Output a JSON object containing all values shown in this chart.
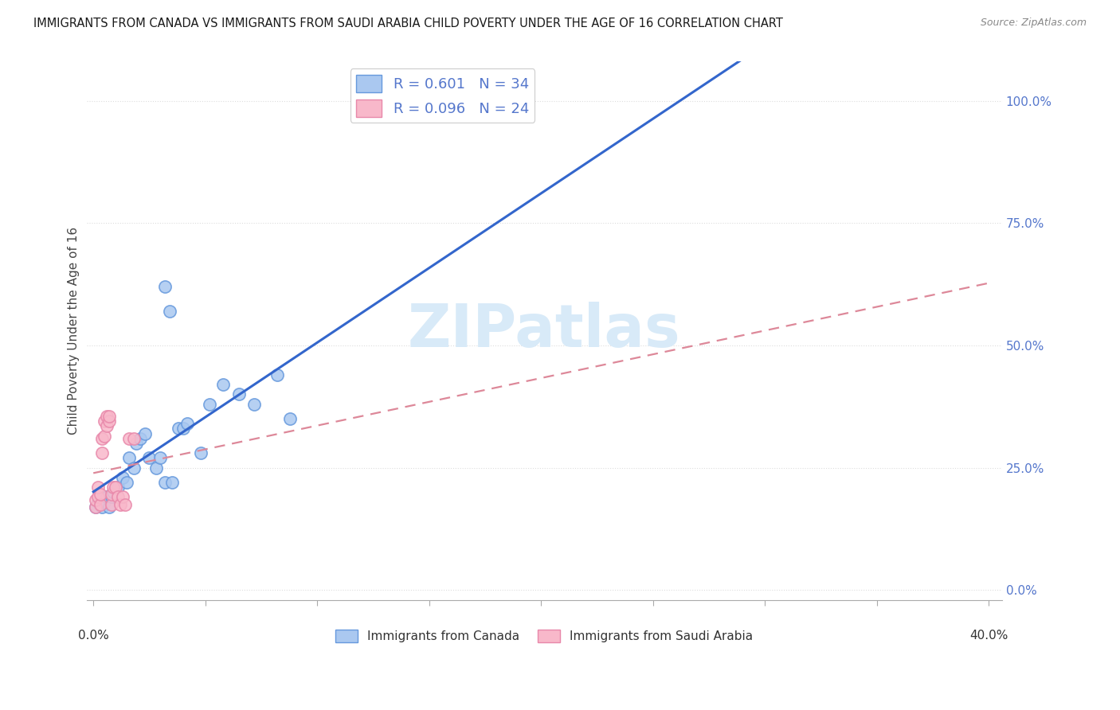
{
  "title": "IMMIGRANTS FROM CANADA VS IMMIGRANTS FROM SAUDI ARABIA CHILD POVERTY UNDER THE AGE OF 16 CORRELATION CHART",
  "source": "Source: ZipAtlas.com",
  "ylabel": "Child Poverty Under the Age of 16",
  "canada_color": "#aac8f0",
  "canada_edge_color": "#6699dd",
  "saudi_color": "#f8b8ca",
  "saudi_edge_color": "#e888aa",
  "trendline_canada_color": "#3366cc",
  "trendline_saudi_color": "#dd8899",
  "background_color": "#ffffff",
  "grid_color": "#dddddd",
  "watermark": "ZIPatlas",
  "watermark_color": "#d8eaf8",
  "right_tick_color": "#5577cc",
  "legend1_label": "R = 0.601   N = 34",
  "legend2_label": "R = 0.096   N = 24",
  "legend_bottom1": "Immigrants from Canada",
  "legend_bottom2": "Immigrants from Saudi Arabia",
  "canada_x": [
    0.001,
    0.002,
    0.003,
    0.004,
    0.005,
    0.006,
    0.007,
    0.008,
    0.009,
    0.011,
    0.013,
    0.015,
    0.016,
    0.018,
    0.019,
    0.021,
    0.023,
    0.025,
    0.028,
    0.03,
    0.032,
    0.035,
    0.038,
    0.04,
    0.042,
    0.048,
    0.052,
    0.058,
    0.065,
    0.072,
    0.082,
    0.088,
    0.032,
    0.034
  ],
  "canada_y": [
    0.17,
    0.18,
    0.19,
    0.17,
    0.18,
    0.19,
    0.17,
    0.19,
    0.2,
    0.21,
    0.23,
    0.22,
    0.27,
    0.25,
    0.3,
    0.31,
    0.32,
    0.27,
    0.25,
    0.27,
    0.22,
    0.22,
    0.33,
    0.33,
    0.34,
    0.28,
    0.38,
    0.42,
    0.4,
    0.38,
    0.44,
    0.35,
    0.62,
    0.57
  ],
  "saudi_x": [
    0.001,
    0.001,
    0.002,
    0.002,
    0.003,
    0.003,
    0.004,
    0.004,
    0.005,
    0.005,
    0.006,
    0.006,
    0.007,
    0.007,
    0.008,
    0.008,
    0.009,
    0.01,
    0.011,
    0.012,
    0.013,
    0.014,
    0.016,
    0.018
  ],
  "saudi_y": [
    0.17,
    0.185,
    0.19,
    0.21,
    0.175,
    0.195,
    0.28,
    0.31,
    0.315,
    0.345,
    0.335,
    0.355,
    0.345,
    0.355,
    0.175,
    0.195,
    0.21,
    0.21,
    0.19,
    0.175,
    0.19,
    0.175,
    0.31,
    0.31
  ],
  "xlim_min": -0.003,
  "xlim_max": 0.406,
  "ylim_min": -0.02,
  "ylim_max": 1.08,
  "yticks": [
    0.0,
    0.25,
    0.5,
    0.75,
    1.0
  ],
  "ytick_labels": [
    "0.0%",
    "25.0%",
    "50.0%",
    "75.0%",
    "100.0%"
  ],
  "xtick_left_label": "0.0%",
  "xtick_right_label": "40.0%"
}
